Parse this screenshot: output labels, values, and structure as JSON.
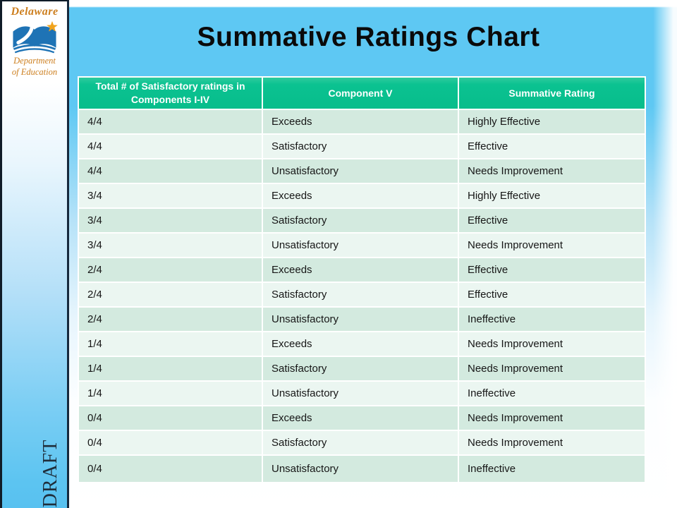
{
  "slide": {
    "title": "Summative Ratings Chart",
    "watermark": "DRAFT"
  },
  "logo": {
    "name": "delaware-department-of-education-logo",
    "line1": "Delaware",
    "line2": "Department",
    "line3": "of Education"
  },
  "colors": {
    "banner_blue": "#5ec8f3",
    "header_green": "#0bc291",
    "row_band_dark": "#d3eadf",
    "row_band_light": "#ebf6f1",
    "navy_border": "#16293d",
    "logo_orange": "#cd7f1f",
    "logo_blue": "#1e73b5",
    "star_gold": "#f0a31c",
    "title_text": "#0a0a0a"
  },
  "table": {
    "columns": [
      "Total # of Satisfactory ratings in\nComponents I-IV",
      "Component V",
      "Summative Rating"
    ],
    "rows": [
      [
        "4/4",
        "Exceeds",
        "Highly Effective"
      ],
      [
        "4/4",
        "Satisfactory",
        "Effective"
      ],
      [
        "4/4",
        "Unsatisfactory",
        "Needs Improvement"
      ],
      [
        "3/4",
        "Exceeds",
        "Highly Effective"
      ],
      [
        "3/4",
        "Satisfactory",
        "Effective"
      ],
      [
        "3/4",
        "Unsatisfactory",
        "Needs Improvement"
      ],
      [
        "2/4",
        "Exceeds",
        "Effective"
      ],
      [
        "2/4",
        "Satisfactory",
        "Effective"
      ],
      [
        "2/4",
        "Unsatisfactory",
        "Ineffective"
      ],
      [
        "1/4",
        "Exceeds",
        "Needs Improvement"
      ],
      [
        "1/4",
        "Satisfactory",
        "Needs Improvement"
      ],
      [
        "1/4",
        "Unsatisfactory",
        "Ineffective"
      ],
      [
        "0/4",
        "Exceeds",
        "Needs Improvement"
      ],
      [
        "0/4",
        "Satisfactory",
        "Needs Improvement"
      ],
      [
        "0/4",
        "Unsatisfactory",
        "Ineffective"
      ]
    ]
  }
}
